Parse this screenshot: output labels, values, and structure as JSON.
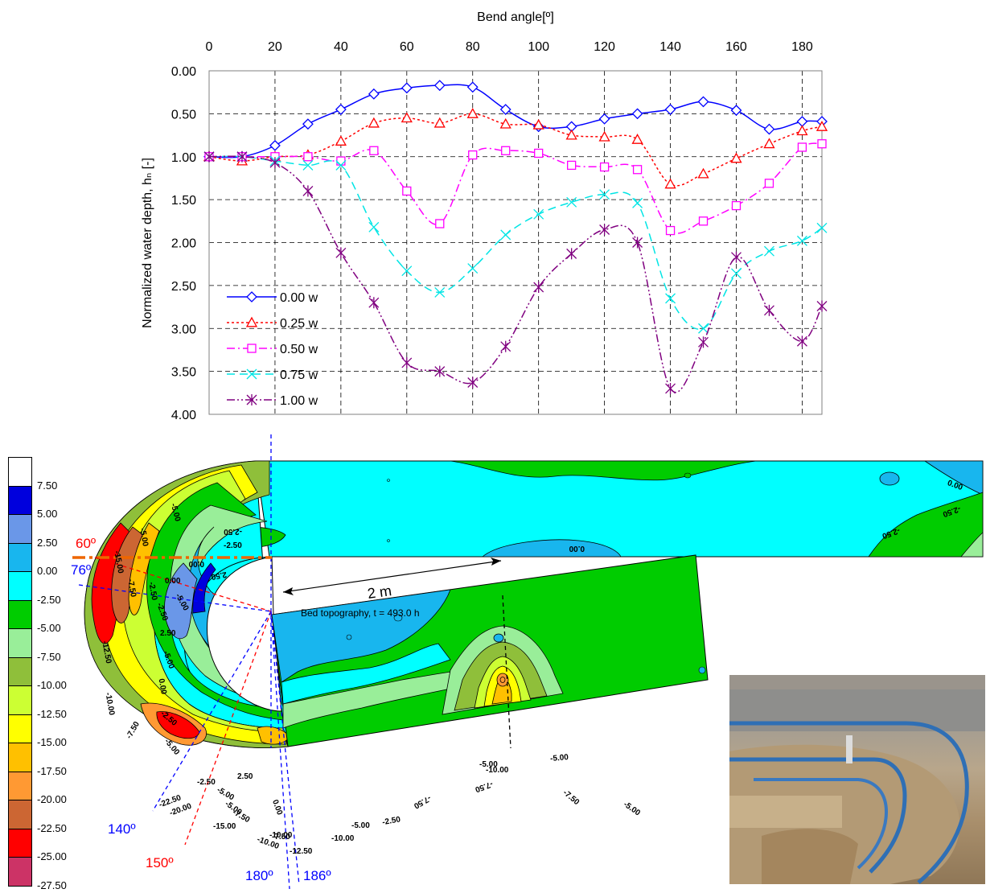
{
  "chart_data": {
    "type": "line",
    "xlabel": "Bend angle[º]",
    "ylabel": "Normalized water depth, hₙ [-]",
    "xlim": [
      0,
      186
    ],
    "ylim": [
      0,
      4
    ],
    "y_reversed": true,
    "x_axis_position": "top",
    "grid": true,
    "x_ticks": [
      "0",
      "20",
      "40",
      "60",
      "80",
      "100",
      "120",
      "140",
      "160",
      "180"
    ],
    "y_ticks": [
      "0.00",
      "0.50",
      "1.00",
      "1.50",
      "2.00",
      "2.50",
      "3.00",
      "3.50",
      "4.00"
    ],
    "legend_position": "lower-left",
    "series": [
      {
        "name": "0.00 w",
        "color": "#0000ff",
        "dash": "solid",
        "marker": "diamond",
        "x": [
          0,
          10,
          20,
          30,
          40,
          50,
          60,
          70,
          80,
          90,
          100,
          110,
          120,
          130,
          140,
          150,
          160,
          170,
          180,
          186
        ],
        "y": [
          1.0,
          1.0,
          0.87,
          0.62,
          0.45,
          0.27,
          0.2,
          0.17,
          0.19,
          0.45,
          0.65,
          0.65,
          0.56,
          0.5,
          0.45,
          0.36,
          0.46,
          0.68,
          0.59,
          0.59
        ]
      },
      {
        "name": "0.25 w",
        "color": "#ff0000",
        "dash": "dotted",
        "marker": "triangle",
        "x": [
          0,
          10,
          20,
          30,
          40,
          50,
          60,
          70,
          80,
          90,
          100,
          110,
          120,
          130,
          140,
          150,
          160,
          170,
          180,
          186
        ],
        "y": [
          1.0,
          1.05,
          1.0,
          0.98,
          0.82,
          0.61,
          0.55,
          0.61,
          0.5,
          0.62,
          0.63,
          0.75,
          0.77,
          0.8,
          1.32,
          1.2,
          1.02,
          0.85,
          0.7,
          0.65
        ]
      },
      {
        "name": "0.50 w",
        "color": "#ff00ff",
        "dash": "dashdot",
        "marker": "square",
        "x": [
          0,
          10,
          20,
          30,
          40,
          50,
          60,
          70,
          80,
          90,
          100,
          110,
          120,
          130,
          140,
          150,
          160,
          170,
          180,
          186
        ],
        "y": [
          1.0,
          1.0,
          1.0,
          1.0,
          1.05,
          0.93,
          1.4,
          1.78,
          0.98,
          0.93,
          0.96,
          1.1,
          1.12,
          1.15,
          1.86,
          1.75,
          1.57,
          1.31,
          0.89,
          0.85
        ]
      },
      {
        "name": "0.75 w",
        "color": "#00e5e5",
        "dash": "dashed",
        "marker": "x",
        "x": [
          0,
          10,
          20,
          30,
          40,
          50,
          60,
          70,
          80,
          90,
          100,
          110,
          120,
          130,
          140,
          150,
          160,
          170,
          180,
          186
        ],
        "y": [
          1.0,
          1.0,
          1.05,
          1.1,
          1.1,
          1.82,
          2.33,
          2.58,
          2.3,
          1.91,
          1.67,
          1.53,
          1.44,
          1.54,
          2.65,
          3.0,
          2.36,
          2.1,
          1.98,
          1.83
        ]
      },
      {
        "name": "1.00 w",
        "color": "#800080",
        "dash": "dashdotdot",
        "marker": "asterisk",
        "x": [
          0,
          10,
          20,
          30,
          40,
          50,
          60,
          70,
          80,
          90,
          100,
          110,
          120,
          130,
          140,
          150,
          160,
          170,
          180,
          186
        ],
        "y": [
          1.0,
          1.0,
          1.07,
          1.4,
          2.12,
          2.7,
          3.4,
          3.5,
          3.63,
          3.21,
          2.52,
          2.13,
          1.85,
          2.0,
          3.7,
          3.16,
          2.17,
          2.79,
          3.15,
          2.74
        ]
      }
    ]
  },
  "topography": {
    "title": "Bed topography, t = 493.0 h",
    "legend_colors": [
      "#ffffff",
      "#0000dd",
      "#6a97e8",
      "#18b6ee",
      "#00ffff",
      "#00cc00",
      "#99ee99",
      "#8fbf3a",
      "#ccff33",
      "#ffff00",
      "#ffc000",
      "#ff9933",
      "#cc6633",
      "#ff0000",
      "#cc3366"
    ],
    "legend_labels": [
      "7.50",
      "5.00",
      "2.50",
      "0.00",
      "-2.50",
      "-5.00",
      "-7.50",
      "-10.00",
      "-12.50",
      "-15.00",
      "-17.50",
      "-20.00",
      "-22.50",
      "-25.00",
      "-27.50"
    ],
    "angle_labels": {
      "a60": "60º",
      "a76": "76º",
      "a140": "140º",
      "a150": "150º",
      "a180": "180º",
      "a186": "186º"
    },
    "scale_label": "2 m",
    "contour_labels": {
      "c1": "0.00",
      "c2": "-2.50",
      "c3": "-2.50",
      "c4": "0.00",
      "c5": "-2.50",
      "c6": "-2.50",
      "c7": "0.00",
      "c8": "2.50",
      "c9": "2.50",
      "c10": "-5.00",
      "c11": "-2.50",
      "c12": "0.00",
      "c13": "-7.50",
      "c14": "-10.00",
      "c15": "-12.50",
      "c16": "-20.00",
      "c17": "-22.50",
      "c18": "-10.00",
      "c19": "-12.50",
      "c20": "-5.00",
      "c21": "-7.50",
      "c22": "-5.00",
      "c23": "-10.00",
      "c24": "-5.00",
      "c25": "-7.50",
      "c26": "-5.00",
      "c27": "-2.50",
      "c28": "-5.00",
      "c29": "-7.50",
      "c30": "2.50",
      "c31": "0.00",
      "c32": "-2.50",
      "c33": "-5.00",
      "c34": "-10.00",
      "c35": "-7.50",
      "c36": "-15.00",
      "c37": "-5.00",
      "c38": "-2.50",
      "c39": "0.00",
      "c40": "-5.00",
      "c41": "-7.50",
      "c42": "-10.00",
      "c43": "-2.50",
      "c44": "-5.00",
      "c45": "-15.00",
      "c46": "-7.50",
      "c47": "-5.00"
    }
  }
}
